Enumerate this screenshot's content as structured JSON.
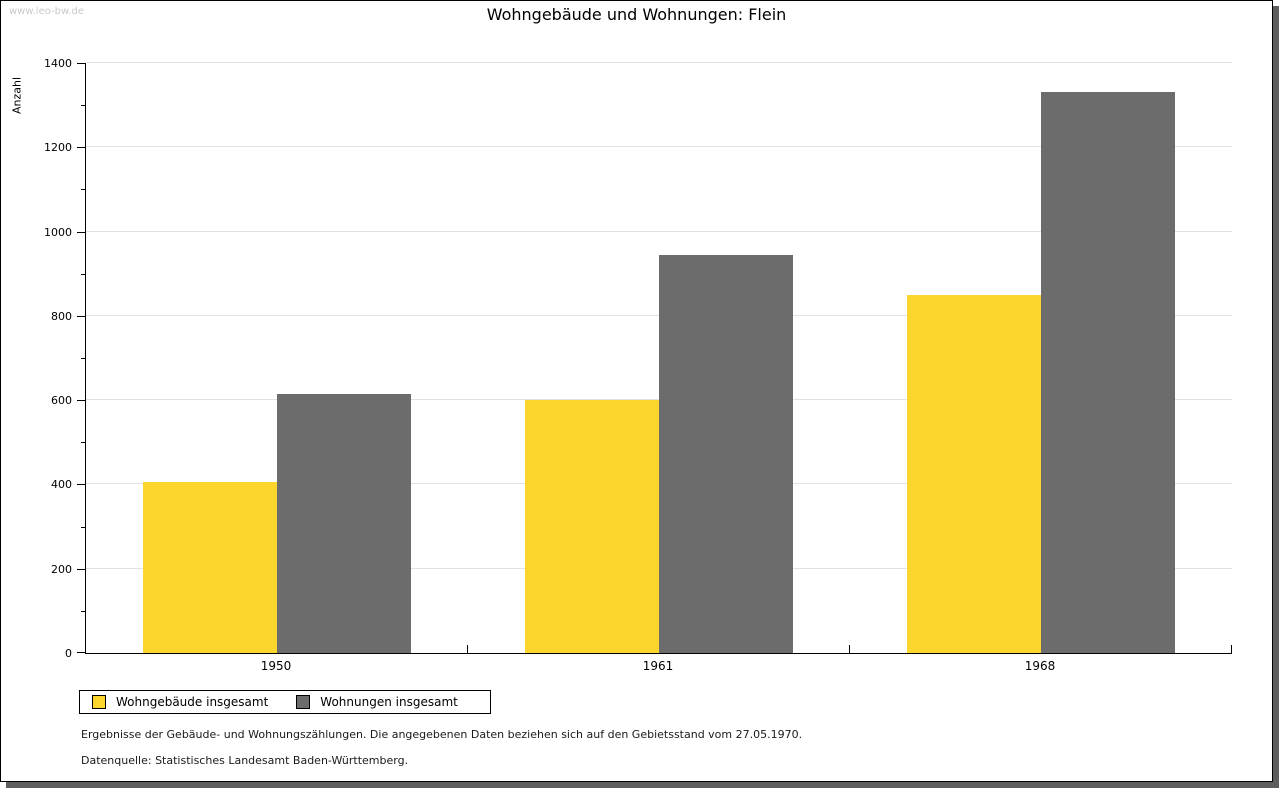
{
  "page": {
    "watermark": "www.leo-bw.de",
    "footnote1": "Ergebnisse der Gebäude- und Wohnungszählungen. Die angegebenen Daten beziehen sich auf den Gebietsstand vom 27.05.1970.",
    "footnote2": "Datenquelle: Statistisches Landesamt Baden-Württemberg."
  },
  "chart_data": {
    "type": "bar",
    "title": "Wohngebäude und Wohnungen: Flein",
    "ylabel": "Anzahl",
    "xlabel": "",
    "categories": [
      "1950",
      "1961",
      "1968"
    ],
    "series": [
      {
        "name": "Wohngebäude insgesamt",
        "color": "#fcd52d",
        "values": [
          406,
          600,
          850
        ]
      },
      {
        "name": "Wohnungen insgesamt",
        "color": "#6c6c6c",
        "values": [
          615,
          944,
          1330
        ]
      }
    ],
    "ylim": [
      0,
      1400
    ],
    "ytick_step": 200,
    "minor_tick_step": 100,
    "grid": true,
    "legend_position": "bottom-left"
  },
  "colors": {
    "series_yellow": "#fcd52d",
    "series_gray": "#6c6c6c",
    "gridline": "#e2e2e2",
    "watermark": "#c9c9c9",
    "shadow": "#5e5e5e"
  }
}
